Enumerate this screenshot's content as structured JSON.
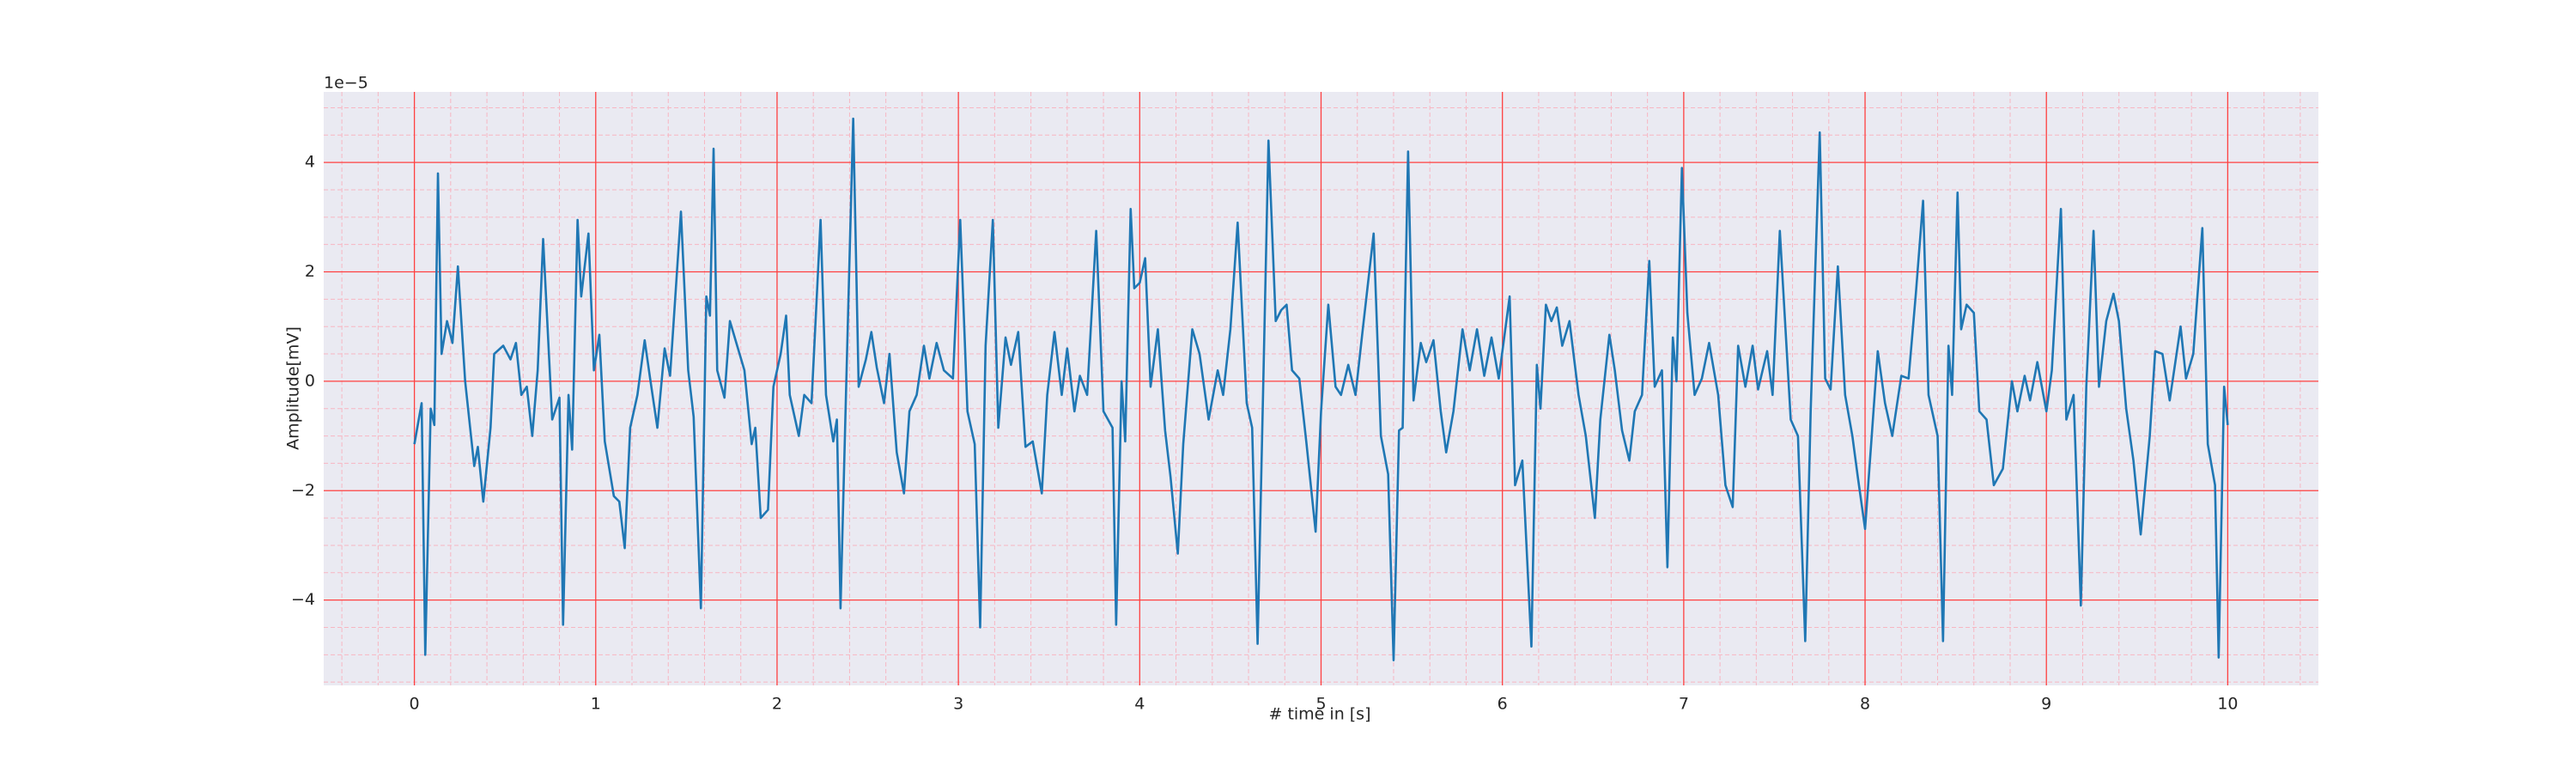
{
  "chart_data": {
    "type": "line",
    "xlabel": "# time in [s]",
    "ylabel": "Amplitude[mV]",
    "y_offset_text": "1e−5",
    "xlim": [
      -0.5,
      10.5
    ],
    "ylim": [
      -5.56,
      5.29
    ],
    "xticks": [
      0,
      1,
      2,
      3,
      4,
      5,
      6,
      7,
      8,
      9,
      10
    ],
    "yticks": [
      {
        "value": -4,
        "label": "−4"
      },
      {
        "value": -2,
        "label": "−2"
      },
      0,
      2,
      4
    ],
    "xminorticks": [
      -0.4,
      -0.2,
      0.2,
      0.4,
      0.6,
      0.8,
      1.2,
      1.4,
      1.6,
      1.8,
      2.2,
      2.4,
      2.6,
      2.8,
      3.2,
      3.4,
      3.6,
      3.8,
      4.2,
      4.4,
      4.6,
      4.8,
      5.2,
      5.4,
      5.6,
      5.8,
      6.2,
      6.4,
      6.6,
      6.8,
      7.2,
      7.4,
      7.6,
      7.8,
      8.2,
      8.4,
      8.6,
      8.8,
      9.2,
      9.4,
      9.6,
      9.8,
      10.2,
      10.4
    ],
    "yminorticks": [
      -5.5,
      -5,
      -4.5,
      -3.5,
      -3,
      -2.5,
      -1.5,
      -1,
      -0.5,
      0.5,
      1,
      1.5,
      2.5,
      3,
      3.5,
      4.5,
      5
    ],
    "grid": true,
    "grid_color": "#ff4040",
    "minor_grid": true,
    "minor_grid_color": "#f7b6c2",
    "background": "#eaeaf2",
    "x": [
      0,
      0.04,
      0.06,
      0.09,
      0.11,
      0.13,
      0.15,
      0.18,
      0.21,
      0.24,
      0.28,
      0.33,
      0.35,
      0.38,
      0.42,
      0.44,
      0.49,
      0.53,
      0.56,
      0.59,
      0.62,
      0.65,
      0.68,
      0.71,
      0.76,
      0.8,
      0.82,
      0.85,
      0.87,
      0.9,
      0.92,
      0.96,
      0.99,
      1.02,
      1.05,
      1.1,
      1.13,
      1.16,
      1.19,
      1.23,
      1.27,
      1.3,
      1.34,
      1.38,
      1.41,
      1.47,
      1.51,
      1.54,
      1.58,
      1.61,
      1.63,
      1.65,
      1.67,
      1.71,
      1.74,
      1.78,
      1.82,
      1.86,
      1.88,
      1.91,
      1.95,
      1.98,
      2.02,
      2.05,
      2.07,
      2.12,
      2.15,
      2.19,
      2.24,
      2.27,
      2.31,
      2.33,
      2.35,
      2.38,
      2.42,
      2.45,
      2.49,
      2.52,
      2.55,
      2.59,
      2.62,
      2.66,
      2.7,
      2.73,
      2.77,
      2.81,
      2.84,
      2.88,
      2.92,
      2.97,
      3.01,
      3.05,
      3.09,
      3.12,
      3.15,
      3.19,
      3.22,
      3.26,
      3.29,
      3.33,
      3.37,
      3.41,
      3.46,
      3.49,
      3.53,
      3.57,
      3.6,
      3.64,
      3.67,
      3.71,
      3.76,
      3.8,
      3.85,
      3.87,
      3.9,
      3.92,
      3.95,
      3.97,
      4.0,
      4.03,
      4.06,
      4.1,
      4.14,
      4.17,
      4.21,
      4.24,
      4.29,
      4.33,
      4.38,
      4.43,
      4.46,
      4.5,
      4.54,
      4.59,
      4.62,
      4.65,
      4.68,
      4.71,
      4.75,
      4.78,
      4.81,
      4.84,
      4.88,
      4.92,
      4.97,
      5.0,
      5.04,
      5.08,
      5.11,
      5.15,
      5.19,
      5.23,
      5.29,
      5.33,
      5.37,
      5.4,
      5.43,
      5.45,
      5.48,
      5.51,
      5.55,
      5.58,
      5.62,
      5.66,
      5.69,
      5.73,
      5.78,
      5.82,
      5.86,
      5.9,
      5.94,
      5.98,
      6.04,
      6.07,
      6.11,
      6.16,
      6.19,
      6.21,
      6.24,
      6.27,
      6.3,
      6.33,
      6.37,
      6.42,
      6.46,
      6.51,
      6.54,
      6.59,
      6.62,
      6.66,
      6.7,
      6.73,
      6.77,
      6.81,
      6.84,
      6.88,
      6.91,
      6.94,
      6.96,
      6.99,
      7.02,
      7.06,
      7.1,
      7.14,
      7.19,
      7.23,
      7.27,
      7.3,
      7.34,
      7.38,
      7.41,
      7.46,
      7.49,
      7.53,
      7.59,
      7.63,
      7.67,
      7.7,
      7.75,
      7.78,
      7.81,
      7.85,
      7.89,
      7.93,
      7.96,
      8.0,
      8.04,
      8.07,
      8.11,
      8.15,
      8.2,
      8.24,
      8.28,
      8.32,
      8.35,
      8.4,
      8.43,
      8.46,
      8.48,
      8.51,
      8.53,
      8.56,
      8.6,
      8.63,
      8.67,
      8.71,
      8.76,
      8.81,
      8.84,
      8.88,
      8.91,
      8.95,
      9.0,
      9.03,
      9.08,
      9.11,
      9.15,
      9.19,
      9.22,
      9.26,
      9.29,
      9.33,
      9.37,
      9.4,
      9.44,
      9.48,
      9.52,
      9.57,
      9.6,
      9.64,
      9.68,
      9.74,
      9.77,
      9.81,
      9.86,
      9.89,
      9.93,
      9.95,
      9.98,
      10.0
    ],
    "series": [
      {
        "color": "#1f77b4",
        "values": [
          -1.15,
          -0.4,
          -5.0,
          -0.5,
          -0.8,
          3.8,
          0.5,
          1.1,
          0.7,
          2.1,
          0,
          -1.55,
          -1.2,
          -2.2,
          -0.85,
          0.5,
          0.65,
          0.4,
          0.7,
          -0.25,
          -0.1,
          -1.0,
          0.2,
          2.6,
          -0.7,
          -0.3,
          -4.45,
          -0.25,
          -1.25,
          2.95,
          1.55,
          2.7,
          0.2,
          0.85,
          -1.1,
          -2.1,
          -2.2,
          -3.05,
          -0.85,
          -0.25,
          0.75,
          0.05,
          -0.85,
          0.6,
          0.1,
          3.1,
          0.2,
          -0.65,
          -4.15,
          1.55,
          1.2,
          4.25,
          0.2,
          -0.3,
          1.1,
          0.65,
          0.2,
          -1.15,
          -0.85,
          -2.5,
          -2.35,
          -0.1,
          0.5,
          1.2,
          -0.25,
          -1.0,
          -0.25,
          -0.4,
          2.95,
          -0.25,
          -1.1,
          -0.7,
          -4.15,
          -0.25,
          4.8,
          -0.1,
          0.4,
          0.9,
          0.25,
          -0.4,
          0.5,
          -1.3,
          -2.05,
          -0.55,
          -0.25,
          0.65,
          0.05,
          0.7,
          0.2,
          0.05,
          2.95,
          -0.55,
          -1.15,
          -4.5,
          0.65,
          2.95,
          -0.85,
          0.8,
          0.3,
          0.9,
          -1.2,
          -1.1,
          -2.05,
          -0.25,
          0.9,
          -0.25,
          0.6,
          -0.55,
          0.1,
          -0.25,
          2.75,
          -0.55,
          -0.85,
          -4.45,
          0,
          -1.1,
          3.15,
          1.7,
          1.8,
          2.25,
          -0.1,
          0.95,
          -0.9,
          -1.75,
          -3.15,
          -1.15,
          0.95,
          0.5,
          -0.7,
          0.2,
          -0.25,
          0.95,
          2.9,
          -0.4,
          -0.85,
          -4.8,
          -0.25,
          4.4,
          1.1,
          1.3,
          1.4,
          0.2,
          0.05,
          -1.15,
          -2.75,
          -0.55,
          1.4,
          -0.1,
          -0.25,
          0.3,
          -0.25,
          0.95,
          2.7,
          -1.0,
          -1.7,
          -5.1,
          -0.9,
          -0.85,
          4.2,
          -0.35,
          0.7,
          0.35,
          0.75,
          -0.55,
          -1.3,
          -0.55,
          0.95,
          0.2,
          0.95,
          0.1,
          0.8,
          0.05,
          1.55,
          -1.9,
          -1.45,
          -4.85,
          0.3,
          -0.5,
          1.4,
          1.1,
          1.35,
          0.65,
          1.1,
          -0.25,
          -1.0,
          -2.5,
          -0.7,
          0.85,
          0.2,
          -0.9,
          -1.45,
          -0.55,
          -0.25,
          2.2,
          -0.1,
          0.2,
          -3.4,
          0.8,
          0,
          3.9,
          1.25,
          -0.25,
          0.05,
          0.7,
          -0.25,
          -1.9,
          -2.3,
          0.65,
          -0.1,
          0.65,
          -0.15,
          0.55,
          -0.25,
          2.75,
          -0.7,
          -1.0,
          -4.75,
          -0.55,
          4.55,
          0.05,
          -0.15,
          2.1,
          -0.25,
          -1.0,
          -1.75,
          -2.7,
          -0.85,
          0.55,
          -0.4,
          -1.0,
          0.1,
          0.05,
          1.6,
          3.3,
          -0.25,
          -1.0,
          -4.75,
          0.65,
          -0.25,
          3.45,
          0.95,
          1.4,
          1.25,
          -0.55,
          -0.7,
          -1.9,
          -1.6,
          0,
          -0.55,
          0.1,
          -0.35,
          0.35,
          -0.55,
          0.2,
          3.15,
          -0.7,
          -0.25,
          -4.1,
          -0.1,
          2.75,
          -0.1,
          1.1,
          1.6,
          1.1,
          -0.5,
          -1.45,
          -2.8,
          -1.0,
          0.55,
          0.5,
          -0.35,
          1.0,
          0.05,
          0.5,
          2.8,
          -1.15,
          -1.9,
          -5.05,
          -0.1,
          -0.8
        ]
      }
    ]
  }
}
